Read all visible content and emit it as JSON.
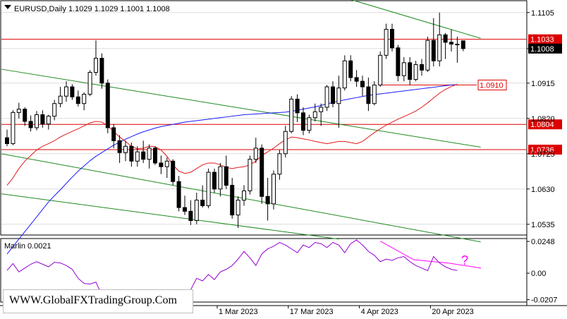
{
  "header": {
    "symbol_info": "EURUSD,Daily  1.1029 1.1029 1.1001 1.1008"
  },
  "indicator": {
    "label": "Marlin 0.0021",
    "annotation": "?"
  },
  "watermark": "WWW.GlobalFXTradingGroup.Com",
  "colors": {
    "bull_body": "#ffffff",
    "bear_body": "#000000",
    "candle_outline": "#000000",
    "ma_blue": "#1a1aff",
    "ma_red": "#e01a1a",
    "channel_green": "#1f8a1f",
    "level_red": "#dd0000",
    "marlin_line": "#9400d3",
    "divergence": "#ff00ff",
    "grid": "#c8c8c8",
    "price_box": "#000000"
  },
  "chart_data": [
    {
      "type": "candlestick",
      "title": "EURUSD,Daily",
      "x_tick_labels": [
        "1 Mar 2023",
        "17 Mar 2023",
        "4 Apr 2023",
        "20 Apr 2023"
      ],
      "y_tick_labels": [
        "1.1105",
        "1.1008",
        "1.0915",
        "1.0820",
        "1.0725",
        "1.0630",
        "1.0535"
      ],
      "ylim": [
        1.0508,
        1.1135
      ],
      "levels": [
        {
          "value": 1.1033,
          "label": "1.1033"
        },
        {
          "value": 1.091,
          "label": "1.0910"
        },
        {
          "value": 1.0804,
          "label": "1.0804"
        },
        {
          "value": 1.0736,
          "label": "1.0736"
        }
      ],
      "current_price": "1.1008",
      "candles": [
        [
          1.0768,
          1.079,
          1.0745,
          1.0752
        ],
        [
          1.0752,
          1.0842,
          1.0748,
          1.0836
        ],
        [
          1.0836,
          1.0862,
          1.082,
          1.0845
        ],
        [
          1.0845,
          1.085,
          1.08,
          1.0812
        ],
        [
          1.0812,
          1.0828,
          1.0785,
          1.0795
        ],
        [
          1.0795,
          1.084,
          1.0788,
          1.083
        ],
        [
          1.083,
          1.0842,
          1.0795,
          1.0805
        ],
        [
          1.0805,
          1.083,
          1.079,
          1.0826
        ],
        [
          1.0826,
          1.087,
          1.0815,
          1.086
        ],
        [
          1.086,
          1.0905,
          1.085,
          1.088
        ],
        [
          1.088,
          1.092,
          1.0865,
          1.0905
        ],
        [
          1.0905,
          1.0912,
          1.087,
          1.0878
        ],
        [
          1.0878,
          1.0895,
          1.0852,
          1.086
        ],
        [
          1.086,
          1.089,
          1.0842,
          1.0885
        ],
        [
          1.0885,
          1.095,
          1.088,
          1.0944
        ],
        [
          1.0944,
          1.103,
          1.0935,
          1.0982
        ],
        [
          1.0982,
          1.0995,
          1.09,
          1.0915
        ],
        [
          1.0915,
          1.0925,
          1.078,
          1.0795
        ],
        [
          1.0795,
          1.0805,
          1.074,
          1.076
        ],
        [
          1.076,
          1.0775,
          1.07,
          1.0728
        ],
        [
          1.0728,
          1.076,
          1.0705,
          1.0745
        ],
        [
          1.0745,
          1.0755,
          1.069,
          1.0705
        ],
        [
          1.0705,
          1.0745,
          1.069,
          1.073
        ],
        [
          1.073,
          1.076,
          1.07,
          1.071
        ],
        [
          1.071,
          1.075,
          1.0685,
          1.074
        ],
        [
          1.074,
          1.0745,
          1.0695,
          1.07
        ],
        [
          1.07,
          1.072,
          1.067,
          1.069
        ],
        [
          1.069,
          1.0715,
          1.066,
          1.0705
        ],
        [
          1.0705,
          1.071,
          1.064,
          1.065
        ],
        [
          1.065,
          1.0665,
          1.057,
          1.058
        ],
        [
          1.058,
          1.0612,
          1.056,
          1.057
        ],
        [
          1.057,
          1.06,
          1.0533,
          1.0545
        ],
        [
          1.0545,
          1.062,
          1.0535,
          1.06
        ],
        [
          1.06,
          1.064,
          1.058,
          1.0585
        ],
        [
          1.0585,
          1.0685,
          1.0578,
          1.0675
        ],
        [
          1.0675,
          1.0685,
          1.062,
          1.063
        ],
        [
          1.063,
          1.07,
          1.061,
          1.069
        ],
        [
          1.069,
          1.072,
          1.063,
          1.064
        ],
        [
          1.064,
          1.066,
          1.055,
          1.056
        ],
        [
          1.056,
          1.061,
          1.0525,
          1.06
        ],
        [
          1.06,
          1.064,
          1.0585,
          1.0625
        ],
        [
          1.0625,
          1.072,
          1.0615,
          1.071
        ],
        [
          1.071,
          1.0768,
          1.07,
          1.074
        ],
        [
          1.074,
          1.075,
          1.059,
          1.061
        ],
        [
          1.061,
          1.066,
          1.0545,
          1.059
        ],
        [
          1.059,
          1.068,
          1.0575,
          1.067
        ],
        [
          1.067,
          1.0735,
          1.0655,
          1.0725
        ],
        [
          1.0725,
          1.08,
          1.0715,
          1.0785
        ],
        [
          1.0785,
          1.088,
          1.078,
          1.0872
        ],
        [
          1.0872,
          1.0885,
          1.081,
          1.0835
        ],
        [
          1.0835,
          1.085,
          1.0775,
          1.0788
        ],
        [
          1.0788,
          1.083,
          1.078,
          1.0822
        ],
        [
          1.0822,
          1.086,
          1.0812,
          1.0838
        ],
        [
          1.0838,
          1.086,
          1.08,
          1.085
        ],
        [
          1.085,
          1.091,
          1.084,
          1.0905
        ],
        [
          1.0905,
          1.092,
          1.085,
          1.086
        ],
        [
          1.086,
          1.0935,
          1.0795,
          1.0902
        ],
        [
          1.0902,
          1.099,
          1.0895,
          1.0975
        ],
        [
          1.0975,
          1.099,
          1.092,
          1.093
        ],
        [
          1.093,
          1.095,
          1.0905,
          1.092
        ],
        [
          1.092,
          1.0935,
          1.088,
          1.0905
        ],
        [
          1.0905,
          1.093,
          1.084,
          1.086
        ],
        [
          1.086,
          1.092,
          1.0855,
          1.091
        ],
        [
          1.091,
          1.1,
          1.0905,
          1.099
        ],
        [
          1.099,
          1.1075,
          1.098,
          1.106
        ],
        [
          1.106,
          1.1075,
          1.1,
          1.101
        ],
        [
          1.101,
          1.1018,
          1.092,
          1.0935
        ],
        [
          1.0935,
          1.0985,
          1.092,
          1.097
        ],
        [
          1.097,
          1.0985,
          1.091,
          1.0925
        ],
        [
          1.0925,
          1.0975,
          1.092,
          1.0965
        ],
        [
          1.0965,
          1.098,
          1.0935,
          1.095
        ],
        [
          1.095,
          1.104,
          1.0945,
          1.103
        ],
        [
          1.103,
          1.109,
          1.096,
          1.0975
        ],
        [
          1.0975,
          1.1105,
          1.096,
          1.1045
        ],
        [
          1.1045,
          1.105,
          1.098,
          1.1025
        ],
        [
          1.1025,
          1.106,
          1.1,
          1.102
        ],
        [
          1.102,
          1.104,
          1.097,
          1.1018
        ],
        [
          1.1029,
          1.1029,
          1.1001,
          1.1008
        ]
      ],
      "moving_averages": [
        {
          "color": "blue",
          "values": [
            1.0455,
            1.0475,
            1.0495,
            1.0515,
            1.0535,
            1.0555,
            1.0575,
            1.0595,
            1.0612,
            1.0628,
            1.0645,
            1.0662,
            1.0678,
            1.0692,
            1.0706,
            1.0718,
            1.0728,
            1.0738,
            1.0748,
            1.0756,
            1.0764,
            1.0771,
            1.0778,
            1.0784,
            1.0789,
            1.0794,
            1.0798,
            1.0801,
            1.0804,
            1.0807,
            1.081,
            1.0812,
            1.0814,
            1.0816,
            1.0818,
            1.082,
            1.0822,
            1.0824,
            1.0826,
            1.0828,
            1.083,
            1.0831,
            1.0832,
            1.0833,
            1.0834,
            1.0835,
            1.0836,
            1.0837,
            1.0839,
            1.0842,
            1.0845,
            1.0848,
            1.0851,
            1.0855,
            1.0859,
            1.0863,
            1.0867,
            1.087,
            1.0873,
            1.0876,
            1.0879,
            1.0882,
            1.0884,
            1.0886,
            1.0888,
            1.089,
            1.0892,
            1.0894,
            1.0896,
            1.0898,
            1.09,
            1.0902,
            1.0904,
            1.0906,
            1.0908,
            1.091,
            1.0911
          ]
        },
        {
          "color": "red",
          "values": [
            1.064,
            1.066,
            1.0685,
            1.0705,
            1.072,
            1.0735,
            1.0745,
            1.0752,
            1.076,
            1.077,
            1.0778,
            1.0785,
            1.0792,
            1.08,
            1.0808,
            1.0812,
            1.081,
            1.08,
            1.0785,
            1.077,
            1.0758,
            1.0745,
            1.0738,
            1.074,
            1.0745,
            1.0744,
            1.0735,
            1.0718,
            1.0695,
            1.0678,
            1.0672,
            1.0675,
            1.0685,
            1.0695,
            1.07,
            1.07,
            1.0695,
            1.0688,
            1.0685,
            1.0688,
            1.069,
            1.0695,
            1.0705,
            1.072,
            1.073,
            1.074,
            1.0752,
            1.0762,
            1.077,
            1.0768,
            1.0765,
            1.0762,
            1.0758,
            1.0755,
            1.0752,
            1.0755,
            1.0758,
            1.0758,
            1.0755,
            1.0752,
            1.0758,
            1.077,
            1.0782,
            1.0792,
            1.0802,
            1.081,
            1.0818,
            1.0825,
            1.0832,
            1.084,
            1.085,
            1.0862,
            1.0875,
            1.0888,
            1.0898,
            1.0906,
            1.0912
          ]
        }
      ]
    },
    {
      "type": "line",
      "title": "Marlin 0.0021",
      "y_tick_labels": [
        "0.0248",
        "0.00",
        "-0.0207"
      ],
      "ylim": [
        -0.022,
        0.0265
      ],
      "series": [
        {
          "values": [
            0.0022,
            0.0075,
            0.001,
            0.004,
            0.007,
            0.009,
            0.007,
            0.005,
            0.0085,
            0.008,
            0.006,
            0.003,
            -0.004,
            -0.008,
            -0.0085,
            -0.007,
            -0.017,
            -0.02,
            -0.021,
            -0.018,
            -0.015,
            -0.021,
            -0.018,
            -0.013,
            -0.018,
            -0.021,
            -0.016,
            -0.02,
            -0.022,
            -0.016,
            -0.013,
            -0.013,
            -0.004,
            -0.006,
            -0.001,
            -0.005,
            0.001,
            0.003,
            0.006,
            0.011,
            0.017,
            0.012,
            0.006,
            0.015,
            0.019,
            0.021,
            0.024,
            0.022,
            0.019,
            0.016,
            0.022,
            0.02,
            0.024,
            0.023,
            0.02,
            0.024,
            0.022,
            0.016,
            0.023,
            0.026,
            0.022,
            0.017,
            0.014,
            0.009,
            0.011,
            0.01,
            0.012,
            0.013,
            0.009,
            0.006,
            0.004,
            0.002,
            0.013,
            0.008,
            0.005,
            0.003,
            0.0021
          ]
        },
        {
          "values": [
            0.025,
            0.0105,
            0.008,
            0.004
          ]
        }
      ]
    }
  ]
}
